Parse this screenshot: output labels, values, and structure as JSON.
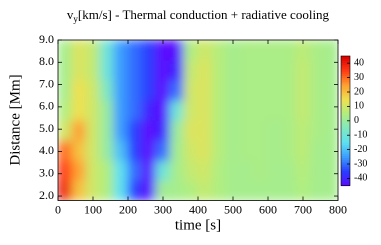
{
  "chart_data": {
    "type": "heatmap",
    "title": [
      "v",
      "y",
      "[km/s] - Thermal conduction + radiative cooling"
    ],
    "xlabel": "time [s]",
    "ylabel": "Distance [Mm]",
    "xlim": [
      0,
      800
    ],
    "ylim": [
      1.8,
      9.0
    ],
    "xticks": [
      0,
      100,
      200,
      300,
      400,
      500,
      600,
      700,
      800
    ],
    "yticks": [
      {
        "value": 2.0,
        "label": "2.0"
      },
      {
        "value": 3.0,
        "label": "3.0"
      },
      {
        "value": 4.0,
        "label": "4.0"
      },
      {
        "value": 5.0,
        "label": "5.0"
      },
      {
        "value": 6.0,
        "label": "6.0"
      },
      {
        "value": 7.0,
        "label": "7.0"
      },
      {
        "value": 8.0,
        "label": "8.0"
      },
      {
        "value": 9.0,
        "label": "9.0"
      }
    ],
    "clim": [
      -45,
      45
    ],
    "cticks": [
      -40,
      -30,
      -20,
      -10,
      0,
      10,
      20,
      30,
      40
    ],
    "colormap": [
      "#5a0aff",
      "#2a3cff",
      "#3a9cff",
      "#5ee0f0",
      "#80e8c0",
      "#b0ee80",
      "#eee050",
      "#ffa030",
      "#ff3a14",
      "#d80000"
    ],
    "xbins": [
      0,
      40,
      80,
      120,
      160,
      200,
      240,
      280,
      320,
      360,
      400,
      440,
      480,
      520,
      560,
      600,
      640,
      680,
      720,
      760,
      800
    ],
    "ybins": [
      1.8,
      2.7,
      3.6,
      4.5,
      5.4,
      6.3,
      7.2,
      8.1,
      9.0
    ],
    "z": [
      [
        40,
        20,
        10,
        5,
        -15,
        -35,
        -45,
        2,
        3,
        5,
        8,
        5,
        3,
        3,
        3,
        3,
        3,
        5,
        3,
        3
      ],
      [
        35,
        25,
        10,
        5,
        -15,
        -30,
        -45,
        -10,
        3,
        8,
        10,
        5,
        3,
        3,
        4,
        3,
        3,
        6,
        3,
        3
      ],
      [
        30,
        20,
        10,
        0,
        -20,
        -35,
        -45,
        -30,
        2,
        10,
        12,
        6,
        3,
        4,
        4,
        3,
        4,
        7,
        3,
        3
      ],
      [
        10,
        25,
        10,
        0,
        -25,
        -35,
        -45,
        -40,
        0,
        12,
        12,
        6,
        3,
        4,
        4,
        3,
        4,
        7,
        4,
        3
      ],
      [
        5,
        15,
        10,
        0,
        -25,
        -30,
        -40,
        -45,
        -10,
        10,
        12,
        6,
        3,
        4,
        4,
        4,
        4,
        8,
        4,
        3
      ],
      [
        3,
        15,
        10,
        -5,
        -25,
        -30,
        -35,
        -45,
        -30,
        10,
        12,
        6,
        3,
        4,
        4,
        4,
        4,
        8,
        4,
        3
      ],
      [
        3,
        12,
        8,
        -10,
        -25,
        -30,
        -35,
        -45,
        -40,
        8,
        12,
        6,
        3,
        4,
        4,
        4,
        4,
        8,
        4,
        3
      ],
      [
        3,
        12,
        8,
        -10,
        -25,
        -30,
        -35,
        -45,
        -45,
        5,
        10,
        6,
        3,
        4,
        4,
        4,
        4,
        7,
        4,
        3
      ]
    ]
  }
}
